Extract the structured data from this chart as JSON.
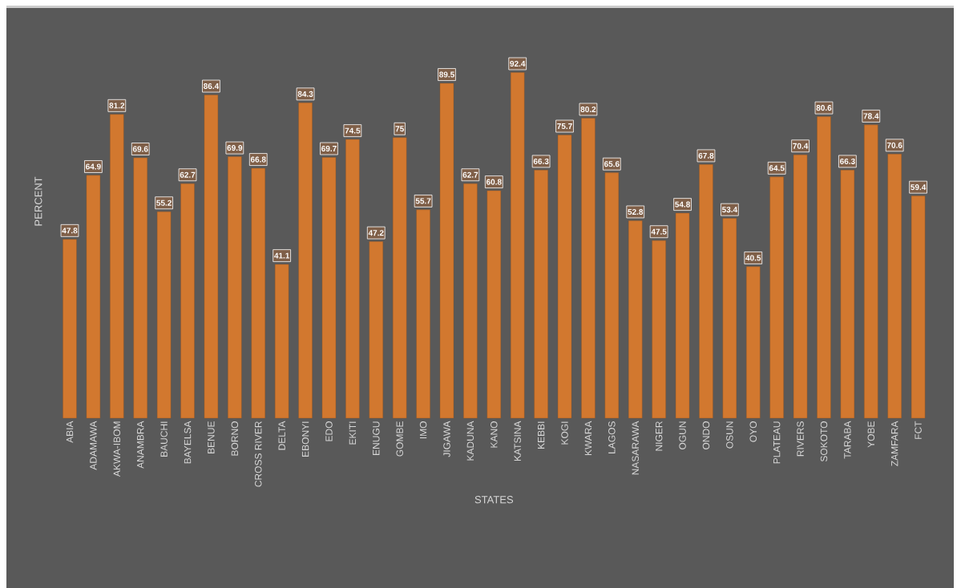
{
  "chart_data": {
    "type": "bar",
    "xlabel": "STATES",
    "ylabel": "PERCENT",
    "categories": [
      "ABIA",
      "ADAMAWA",
      "AKWA-IBOM",
      "ANAMBRA",
      "BAUCHI",
      "BAYELSA",
      "BENUE",
      "BORNO",
      "CROSS RIVER",
      "DELTA",
      "EBONYI",
      "EDO",
      "EKITI",
      "ENUGU",
      "GOMBE",
      "IMO",
      "JIGAWA",
      "KADUNA",
      "KANO",
      "KATSINA",
      "KEBBI",
      "KOGI",
      "KWARA",
      "LAGOS",
      "NASARAWA",
      "NIGER",
      "OGUN",
      "ONDO",
      "OSUN",
      "OYO",
      "PLATEAU",
      "RIVERS",
      "SOKOTO",
      "TARABA",
      "YOBE",
      "ZAMFARA",
      "FCT"
    ],
    "values": [
      47.8,
      64.9,
      81.2,
      69.6,
      55.2,
      62.7,
      86.4,
      69.9,
      66.8,
      41.1,
      84.3,
      69.7,
      74.5,
      47.2,
      75,
      55.7,
      89.5,
      62.7,
      60.8,
      92.4,
      66.3,
      75.7,
      80.2,
      65.6,
      52.8,
      47.5,
      54.8,
      67.8,
      53.4,
      40.5,
      64.5,
      70.4,
      80.6,
      66.3,
      78.4,
      70.6,
      59.4
    ],
    "color": "#d2782f",
    "tick_labels": "x",
    "data_labels": true
  }
}
